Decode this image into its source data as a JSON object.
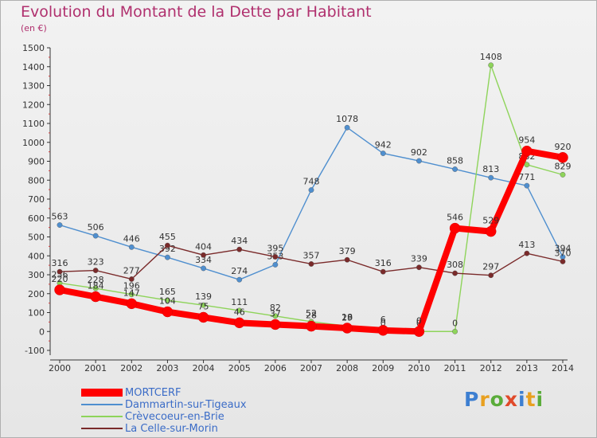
{
  "title": "Evolution du Montant de la Dette par Habitant",
  "unit": "(en €)",
  "logo_letters": [
    {
      "ch": "P",
      "color": "#3d7fd1"
    },
    {
      "ch": "r",
      "color": "#e8a020"
    },
    {
      "ch": "o",
      "color": "#5aac3a"
    },
    {
      "ch": "x",
      "color": "#e04a2a"
    },
    {
      "ch": "i",
      "color": "#3d7fd1"
    },
    {
      "ch": "t",
      "color": "#e8a020"
    },
    {
      "ch": "i",
      "color": "#5aac3a"
    }
  ],
  "chart_data": {
    "type": "line",
    "title": "Evolution du Montant de la Dette par Habitant",
    "ylabel": "(en €)",
    "x": [
      2000,
      2001,
      2002,
      2003,
      2004,
      2005,
      2006,
      2007,
      2008,
      2009,
      2010,
      2011,
      2012,
      2013,
      2014
    ],
    "yticks": [
      -100,
      0,
      100,
      200,
      300,
      400,
      500,
      600,
      700,
      800,
      900,
      1000,
      1100,
      1200,
      1300,
      1400,
      1500
    ],
    "ylim": [
      -100,
      1500
    ],
    "grid": false,
    "legend_position": "bottom-left",
    "series": [
      {
        "name": "Dammartin-sur-Tigeaux",
        "color": "#4f8fcf",
        "values": [
          563,
          506,
          446,
          392,
          334,
          274,
          353,
          748,
          1078,
          942,
          902,
          858,
          813,
          771,
          394
        ]
      },
      {
        "name": "Crèvecoeur-en-Brie",
        "color": "#8ed45a",
        "values": [
          256,
          228,
          196,
          165,
          139,
          111,
          82,
          52,
          29,
          0,
          0,
          0,
          1408,
          882,
          829
        ]
      },
      {
        "name": "La Celle-sur-Morin",
        "color": "#7a2a2a",
        "values": [
          316,
          323,
          277,
          455,
          404,
          434,
          395,
          357,
          379,
          316,
          339,
          308,
          297,
          413,
          370
        ]
      },
      {
        "name": "MORTCERF",
        "color": "#ff0000",
        "values": [
          220,
          184,
          147,
          104,
          75,
          46,
          37,
          28,
          18,
          6,
          0,
          546,
          529,
          954,
          920
        ]
      }
    ]
  }
}
